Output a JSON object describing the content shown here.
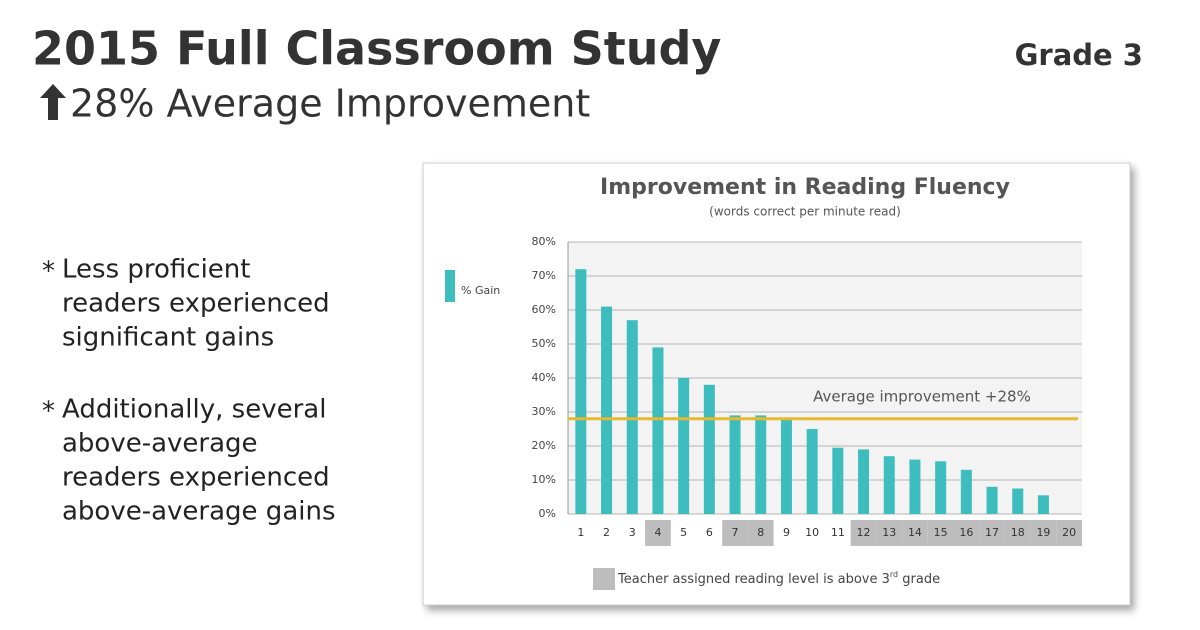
{
  "header": {
    "title": "2015 Full Classroom Study",
    "subtitle": "28% Average Improvement",
    "grade": "Grade 3"
  },
  "bullets": [
    {
      "marker": "*",
      "lines": [
        "Less proficient",
        "readers experienced",
        "significant gains"
      ]
    },
    {
      "marker": "*",
      "lines": [
        "Additionally, several",
        "above-average",
        "readers experienced",
        "above-average gains"
      ]
    }
  ],
  "chart_data": {
    "type": "bar",
    "title": "Improvement in Reading Fluency",
    "subtitle": "(words correct per minute read)",
    "categories": [
      "1",
      "2",
      "3",
      "4",
      "5",
      "6",
      "7",
      "8",
      "9",
      "10",
      "11",
      "12",
      "13",
      "14",
      "15",
      "16",
      "17",
      "18",
      "19",
      "20"
    ],
    "series": [
      {
        "name": "% Gain",
        "color": "#3dbdbd",
        "values": [
          72,
          61,
          57,
          49,
          40,
          38,
          29,
          29,
          28,
          25,
          19.5,
          19,
          17,
          16,
          15.5,
          13,
          8,
          7.5,
          5.5,
          null
        ]
      }
    ],
    "ylim": [
      0,
      80
    ],
    "yticks": [
      {
        "value": 0,
        "label": "0%"
      },
      {
        "value": 10,
        "label": "10%"
      },
      {
        "value": 20,
        "label": "20%"
      },
      {
        "value": 30,
        "label": "30%"
      },
      {
        "value": 40,
        "label": "40%"
      },
      {
        "value": 50,
        "label": "50%"
      },
      {
        "value": 60,
        "label": "60%"
      },
      {
        "value": 70,
        "label": "70%"
      },
      {
        "value": 80,
        "label": "80%"
      }
    ],
    "grid": true,
    "legend": "left",
    "average_line": {
      "value": 28,
      "label": "Average improvement  +28%",
      "color": "#e8b92e"
    },
    "highlighted": [
      false,
      false,
      false,
      true,
      false,
      false,
      true,
      true,
      false,
      false,
      false,
      true,
      true,
      true,
      true,
      true,
      true,
      true,
      true,
      true
    ],
    "highlight_color": "#bdbdbd",
    "highlight_legend": [
      "Teacher assigned reading level is above 3",
      "rd",
      " grade"
    ]
  }
}
